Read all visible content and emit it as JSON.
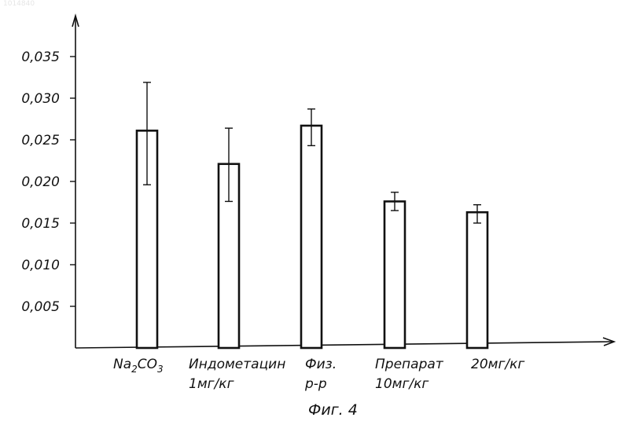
{
  "corner_id": "1014840",
  "chart_data": {
    "type": "bar",
    "title": "",
    "xlabel": "",
    "ylabel": "",
    "caption": "Фиг. 4",
    "ylim": [
      0,
      0.0385
    ],
    "yticks": [
      "0,005",
      "0,010",
      "0,015",
      "0,020",
      "0,025",
      "0,030",
      "0,035"
    ],
    "ytick_values": [
      0.005,
      0.01,
      0.015,
      0.02,
      0.025,
      0.03,
      0.035
    ],
    "grid": false,
    "legend": "none",
    "categories": [
      {
        "lines": [
          {
            "main": "Na",
            "sub": "2"
          },
          {
            "main": "CO",
            "sub": "3"
          }
        ]
      },
      {
        "lines": [
          "Индометацин",
          "1мг/кг"
        ]
      },
      {
        "lines": [
          "Физ.",
          "р-р"
        ]
      },
      {
        "lines": [
          "Препарат",
          "10мг/кг"
        ]
      },
      {
        "lines": [
          "20мг/кг"
        ]
      }
    ],
    "category_text": [
      "Na2CO3",
      "Индометацин 1мг/кг",
      "Физ. р-р",
      "Препарат 10мг/кг",
      "20мг/кг"
    ],
    "values": [
      0.0261,
      0.0221,
      0.0267,
      0.0176,
      0.0163
    ],
    "errors": [
      [
        0.0196,
        0.0319
      ],
      [
        0.0176,
        0.0264
      ],
      [
        0.0243,
        0.0287
      ],
      [
        0.0165,
        0.0187
      ],
      [
        0.015,
        0.0172
      ]
    ],
    "colors": {
      "bar_fill": "#ffffff",
      "stroke": "#111111"
    }
  }
}
